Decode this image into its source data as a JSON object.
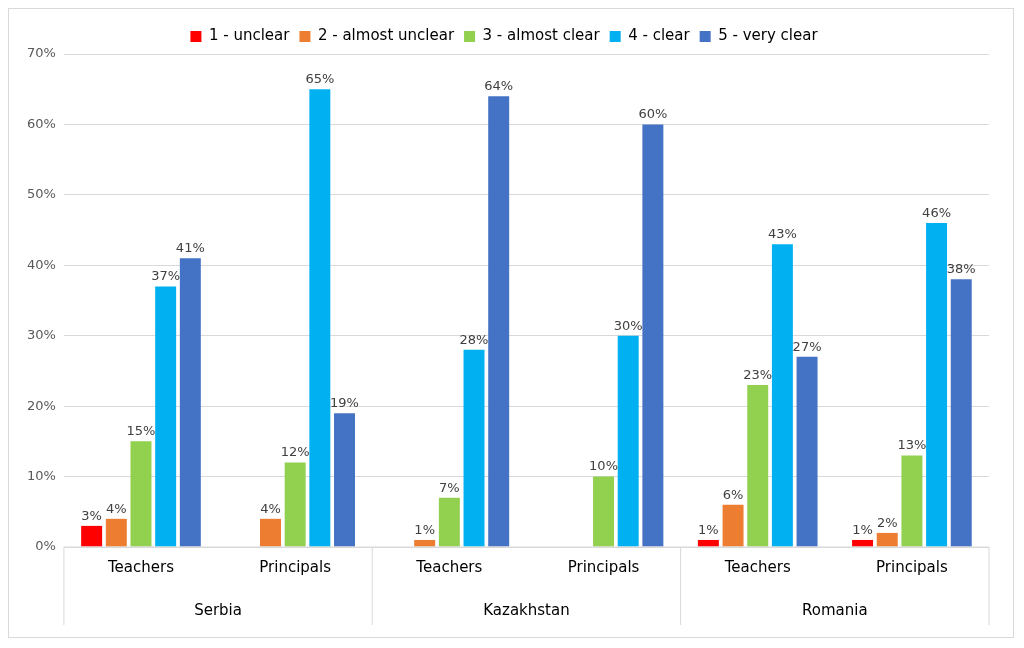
{
  "chart_data": {
    "type": "bar",
    "categories": [
      "Teachers",
      "Principals",
      "Teachers",
      "Principals",
      "Teachers",
      "Principals"
    ],
    "annotations": [
      "Serbia",
      "Kazakhstan",
      "Romania"
    ],
    "series": [
      {
        "name": "1 - unclear",
        "color": "#ff0000",
        "values": [
          3,
          null,
          null,
          null,
          1,
          1
        ],
        "value_labels": [
          "3%",
          null,
          null,
          null,
          "1%",
          "1%"
        ]
      },
      {
        "name": "2 - almost unclear",
        "color": "#ed7d31",
        "values": [
          4,
          4,
          1,
          null,
          6,
          2
        ],
        "value_labels": [
          "4%",
          "4%",
          "1%",
          null,
          "6%",
          "2%"
        ]
      },
      {
        "name": "3 - almost clear",
        "color": "#92d050",
        "values": [
          15,
          12,
          7,
          10,
          23,
          13
        ],
        "value_labels": [
          "15%",
          "12%",
          "7%",
          "10%",
          "23%",
          "13%"
        ]
      },
      {
        "name": "4 - clear",
        "color": "#00b0f0",
        "values": [
          37,
          65,
          28,
          30,
          43,
          46
        ],
        "value_labels": [
          "37%",
          "65%",
          "28%",
          "30%",
          "43%",
          "46%"
        ]
      },
      {
        "name": "5 - very clear",
        "color": "#4472c4",
        "values": [
          41,
          19,
          64,
          60,
          27,
          38
        ],
        "value_labels": [
          "41%",
          "19%",
          "64%",
          "60%",
          "27%",
          "38%"
        ]
      }
    ],
    "ylim": [
      0,
      70
    ],
    "yticks": [
      {
        "value": 0,
        "label": "0%"
      },
      {
        "value": 10,
        "label": "10%"
      },
      {
        "value": 20,
        "label": "20%"
      },
      {
        "value": 30,
        "label": "30%"
      },
      {
        "value": 40,
        "label": "40%"
      },
      {
        "value": 50,
        "label": "50%"
      },
      {
        "value": 60,
        "label": "60%"
      },
      {
        "value": 70,
        "label": "70%"
      }
    ],
    "grid": "y",
    "legend": "top"
  }
}
